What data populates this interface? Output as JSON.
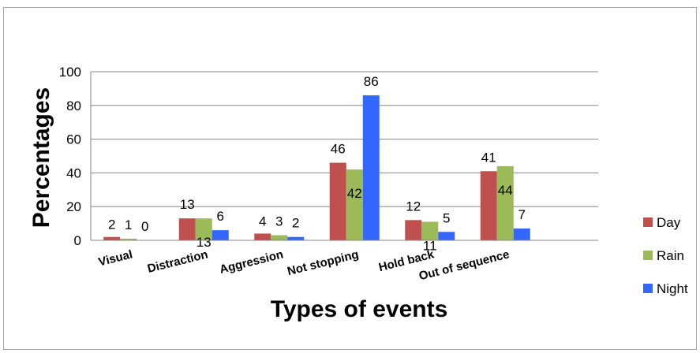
{
  "chart_data": {
    "type": "bar",
    "title": "",
    "xlabel": "Types of events",
    "ylabel": "Percentages",
    "ylim": [
      0,
      100
    ],
    "yticks": [
      0,
      20,
      40,
      60,
      80,
      100
    ],
    "grid": true,
    "legend_position": "right",
    "categories": [
      "Visual",
      "Distraction",
      "Aggression",
      "Not stopping",
      "Hold back",
      "Out of sequence"
    ],
    "series": [
      {
        "name": "Day",
        "color": "#c0504d",
        "values": [
          2,
          13,
          4,
          46,
          12,
          41
        ],
        "labels": [
          "2",
          "13",
          "4",
          "46",
          "12",
          "41"
        ]
      },
      {
        "name": "Rain",
        "color": "#9bbb59",
        "values": [
          1,
          13,
          3,
          42,
          11,
          44
        ],
        "labels": [
          "1",
          "13",
          "3",
          "42",
          "11",
          "44"
        ]
      },
      {
        "name": "Night",
        "color": "#3366ff",
        "values": [
          0,
          6,
          2,
          86,
          5,
          7
        ],
        "labels": [
          "0",
          "6",
          "2",
          "86",
          "5",
          "7"
        ]
      }
    ]
  }
}
